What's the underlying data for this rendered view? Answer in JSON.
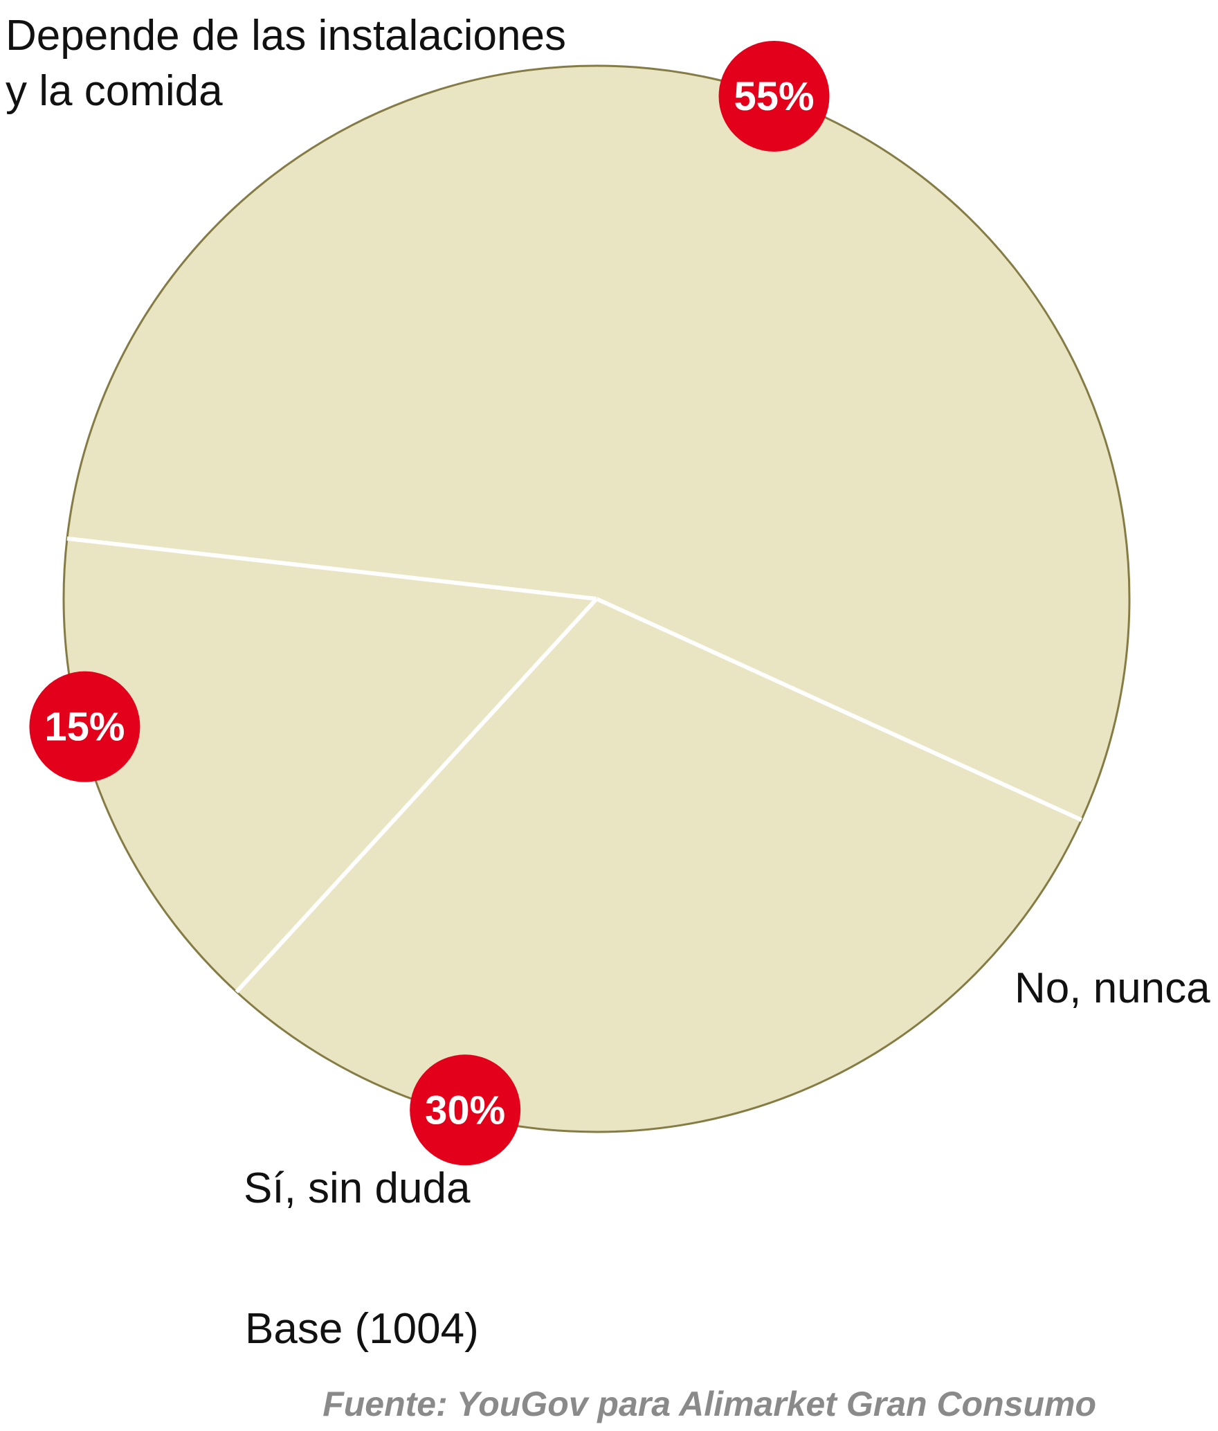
{
  "chart_data": {
    "type": "pie",
    "categories": [
      "Depende de las instalaciones y la comida",
      "No, nunca",
      "Sí, sin duda"
    ],
    "values": [
      55,
      30,
      15
    ],
    "value_labels": [
      "55%",
      "30%",
      "15%"
    ],
    "label_lines": [
      [
        "Depende de las instalaciones",
        "y la comida"
      ],
      [
        "No, nunca"
      ],
      [
        "Sí, sin duda"
      ]
    ],
    "base_note": "Base (1004)",
    "source": "Fuente: YouGov para Alimarket Gran Consumo",
    "legend": "none",
    "colors": {
      "slice_fill": "#e9e4c2",
      "slice_stroke": "#857c45",
      "badge": "#e2001a",
      "badge_text": "#ffffff",
      "separator": "#ffffff"
    }
  }
}
